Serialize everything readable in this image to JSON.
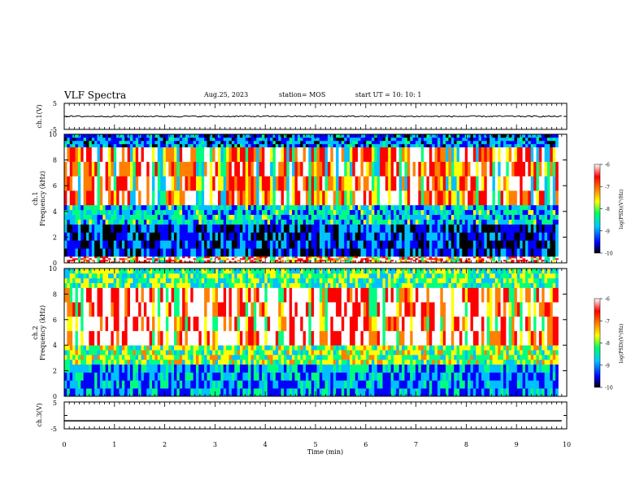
{
  "header": {
    "title": "VLF Spectra",
    "date": "Aug.25, 2023",
    "station": "station= MOS",
    "start": "start  UT =   10: 10: 1"
  },
  "chart_data": [
    {
      "type": "line",
      "panel": "ch1-waveform",
      "ylabel": "ch.1(V)",
      "ylim": [
        -5,
        5
      ],
      "yticks": [
        "5",
        "-5"
      ],
      "xlim": [
        0,
        10
      ],
      "series": [
        {
          "values_note_level": 0
        }
      ],
      "level": 0
    },
    {
      "type": "heatmap",
      "panel": "ch1-spectrogram",
      "ylabel": "ch.1\nFrequency (kHz)",
      "ylabel_top": "ch.1",
      "ylabel_bottom": "Frequency (kHz)",
      "ylim": [
        0,
        10
      ],
      "yticks": [
        "0",
        "2",
        "4",
        "6",
        "8",
        "10"
      ],
      "xlim": [
        0,
        9.83
      ],
      "colorbar": {
        "label": "log(PSD)(V²/Hz)",
        "ticks": [
          "-6",
          "-7",
          "-8",
          "-9",
          "-10"
        ],
        "range": [
          -10,
          -6
        ]
      },
      "bands": [
        {
          "f_low": 0,
          "f_high": 0.5,
          "level": -6.5
        },
        {
          "f_low": 0.5,
          "f_high": 3.0,
          "level": -9.3
        },
        {
          "f_low": 3.0,
          "f_high": 4.5,
          "level": -8.6
        },
        {
          "f_low": 4.5,
          "f_high": 9.0,
          "level": -6.7
        },
        {
          "f_low": 9.0,
          "f_high": 10,
          "level": -9.0
        }
      ]
    },
    {
      "type": "heatmap",
      "panel": "ch2-spectrogram",
      "ylabel_top": "ch.2",
      "ylabel_bottom": "Frequency (kHz)",
      "ylim": [
        0,
        10
      ],
      "yticks": [
        "0",
        "2",
        "4",
        "6",
        "8",
        "10"
      ],
      "xlim": [
        0,
        9.83
      ],
      "colorbar": {
        "label": "log(PSD)(V²/Hz)",
        "ticks": [
          "-6",
          "-7",
          "-8",
          "-9",
          "-10"
        ],
        "range": [
          -10,
          -6
        ]
      },
      "bands": [
        {
          "f_low": 0,
          "f_high": 2.5,
          "level": -8.8
        },
        {
          "f_low": 2.5,
          "f_high": 4.0,
          "level": -8.0
        },
        {
          "f_low": 4.0,
          "f_high": 8.5,
          "level": -6.3
        },
        {
          "f_low": 8.5,
          "f_high": 10,
          "level": -8.2
        }
      ]
    },
    {
      "type": "line",
      "panel": "ch3-waveform",
      "ylabel": "ch.3(V)",
      "ylim": [
        -5,
        5
      ],
      "yticks": [
        "5",
        "-5"
      ],
      "xlim": [
        0,
        10
      ],
      "level": -2
    }
  ],
  "xaxis": {
    "label": "Time  (min)",
    "ticks": [
      "0",
      "1",
      "2",
      "3",
      "4",
      "5",
      "6",
      "7",
      "8",
      "9",
      "10"
    ],
    "range": [
      0,
      10
    ]
  },
  "colors": {
    "axis": "#000000",
    "colormap": [
      "#000000",
      "#0000ff",
      "#00c0ff",
      "#00ff80",
      "#ffff00",
      "#ff8000",
      "#ff0000",
      "#ffffff"
    ]
  }
}
